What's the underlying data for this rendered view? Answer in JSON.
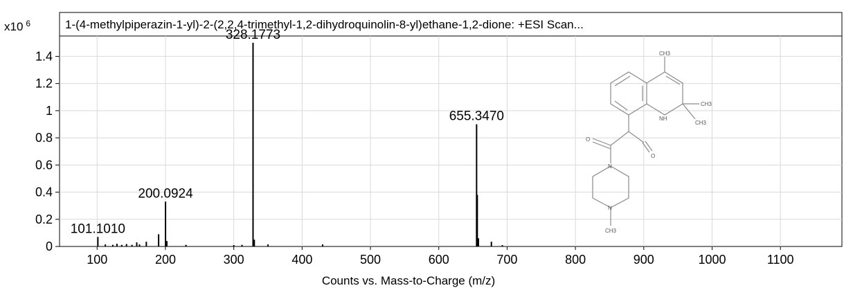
{
  "chart_data": {
    "type": "bar",
    "title": "1-(4-methylpiperazin-1-yl)-2-(2,2,4-trimethyl-1,2-dihydroquinolin-8-yl)ethane-1,2-dione: +ESI Scan...",
    "xlabel": "Counts vs. Mass-to-Charge (m/z)",
    "y_multiplier_base": "x10",
    "y_multiplier_exp": "6",
    "xlim": [
      45,
      1190
    ],
    "ylim": [
      0,
      1.55
    ],
    "x_ticks": [
      100,
      200,
      300,
      400,
      500,
      600,
      700,
      800,
      900,
      1000,
      1100
    ],
    "y_ticks": [
      {
        "value": 0,
        "label": "0"
      },
      {
        "value": 0.2,
        "label": "0.2"
      },
      {
        "value": 0.4,
        "label": "0.4"
      },
      {
        "value": 0.6,
        "label": "0.6"
      },
      {
        "value": 0.8,
        "label": "0.8"
      },
      {
        "value": 1.0,
        "label": "1"
      },
      {
        "value": 1.2,
        "label": "1.2"
      },
      {
        "value": 1.4,
        "label": "1.4"
      }
    ],
    "grid": true,
    "peaks": [
      {
        "x": 101.101,
        "y": 0.07
      },
      {
        "x": 112.0,
        "y": 0.015
      },
      {
        "x": 123.0,
        "y": 0.012
      },
      {
        "x": 129.0,
        "y": 0.02
      },
      {
        "x": 136.0,
        "y": 0.012
      },
      {
        "x": 143.0,
        "y": 0.018
      },
      {
        "x": 151.0,
        "y": 0.012
      },
      {
        "x": 158.0,
        "y": 0.03
      },
      {
        "x": 162.0,
        "y": 0.015
      },
      {
        "x": 172.0,
        "y": 0.035
      },
      {
        "x": 190.0,
        "y": 0.09
      },
      {
        "x": 200.0924,
        "y": 0.33
      },
      {
        "x": 202.0,
        "y": 0.04
      },
      {
        "x": 230.0,
        "y": 0.012
      },
      {
        "x": 300.0,
        "y": 0.01
      },
      {
        "x": 312.0,
        "y": 0.012
      },
      {
        "x": 328.1773,
        "y": 1.5
      },
      {
        "x": 330.0,
        "y": 0.05
      },
      {
        "x": 350.0,
        "y": 0.015
      },
      {
        "x": 430.0,
        "y": 0.015
      },
      {
        "x": 655.347,
        "y": 0.9
      },
      {
        "x": 656.35,
        "y": 0.38
      },
      {
        "x": 658.0,
        "y": 0.06
      },
      {
        "x": 677.0,
        "y": 0.035
      },
      {
        "x": 693.0,
        "y": 0.01
      }
    ],
    "labels": [
      {
        "x": 101.101,
        "y": 0.07,
        "text": "101.1010"
      },
      {
        "x": 200.0924,
        "y": 0.33,
        "text": "200.0924"
      },
      {
        "x": 328.1773,
        "y": 1.5,
        "text": "328.1773"
      },
      {
        "x": 655.347,
        "y": 0.9,
        "text": "655.3470"
      }
    ]
  },
  "structure": {
    "labels": {
      "ch3_top": "CH3",
      "ch3_right_upper": "CH3",
      "ch3_right_lower": "CH3",
      "nh": "NH",
      "o_left": "O",
      "o_right": "O",
      "n_upper": "N",
      "n_lower": "N",
      "ch3_bottom": "CH3"
    }
  }
}
